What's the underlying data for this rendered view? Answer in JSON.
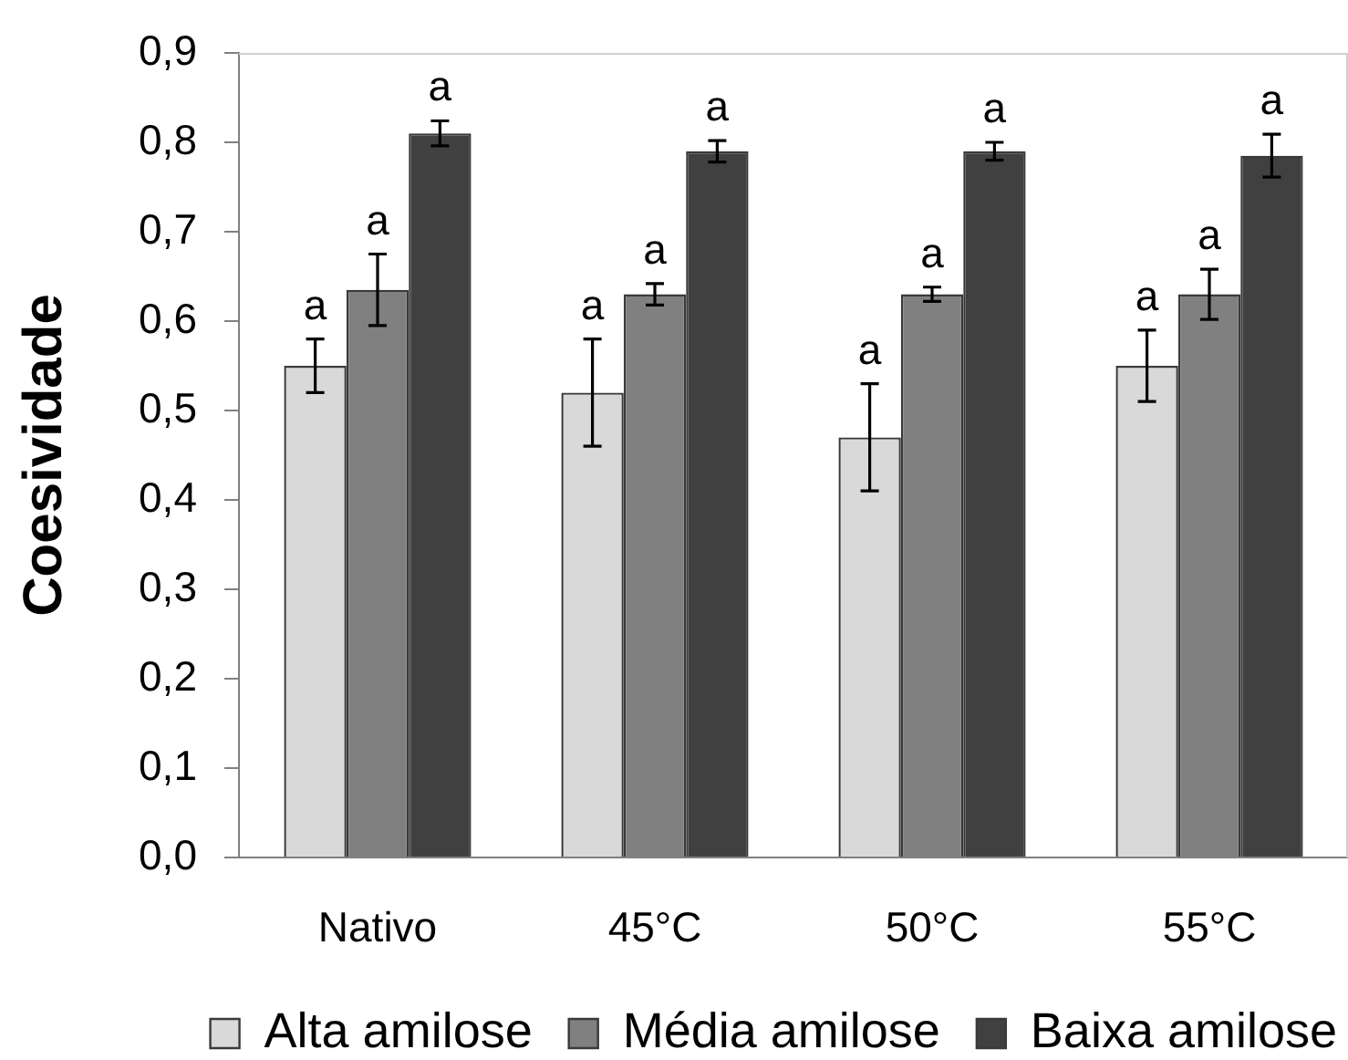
{
  "chart_data": {
    "type": "bar",
    "ylabel": "Coesividade",
    "categories": [
      "Nativo",
      "45°C",
      "50°C",
      "55°C"
    ],
    "series": [
      {
        "name": "Alta amilose",
        "color": "#d9d9d9",
        "values": [
          0.55,
          0.52,
          0.47,
          0.55
        ],
        "errors": [
          0.03,
          0.06,
          0.06,
          0.04
        ],
        "value_labels": [
          "a",
          "a",
          "a",
          "a"
        ]
      },
      {
        "name": "Média amilose",
        "color": "#808080",
        "values": [
          0.635,
          0.63,
          0.63,
          0.63
        ],
        "errors": [
          0.04,
          0.012,
          0.008,
          0.028
        ],
        "value_labels": [
          "a",
          "a",
          "a",
          "a"
        ]
      },
      {
        "name": "Baixa amilose",
        "color": "#404040",
        "values": [
          0.81,
          0.79,
          0.79,
          0.785
        ],
        "errors": [
          0.014,
          0.012,
          0.01,
          0.024
        ],
        "value_labels": [
          "a",
          "a",
          "a",
          "a"
        ]
      }
    ],
    "ylim": [
      0,
      0.9
    ],
    "yticks": [
      {
        "value": 0,
        "label": "0,0"
      },
      {
        "value": 0.1,
        "label": "0,1"
      },
      {
        "value": 0.2,
        "label": "0,2"
      },
      {
        "value": 0.3,
        "label": "0,3"
      },
      {
        "value": 0.4,
        "label": "0,4"
      },
      {
        "value": 0.5,
        "label": "0,5"
      },
      {
        "value": 0.6,
        "label": "0,6"
      },
      {
        "value": 0.7,
        "label": "0,7"
      },
      {
        "value": 0.8,
        "label": "0,8"
      },
      {
        "value": 0.9,
        "label": "0,9"
      }
    ],
    "legend": "bottom"
  }
}
